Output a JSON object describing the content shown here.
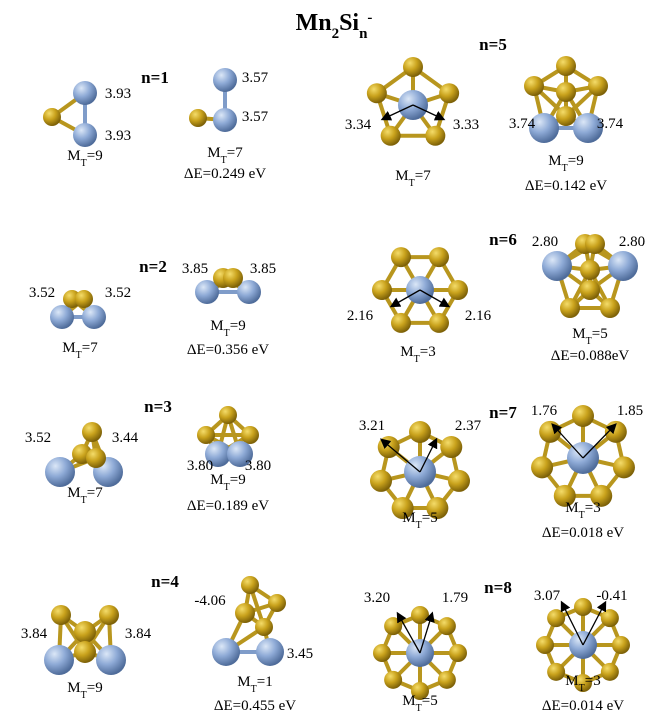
{
  "title": {
    "part1": "Mn",
    "sub1": "2",
    "part2": "Si",
    "sub2": "n",
    "sup": "-"
  },
  "groups": [
    {
      "label": "n=1",
      "isomers": [
        {
          "moments": [
            "3.93",
            "3.93"
          ],
          "mt": {
            "symbol": "M",
            "sub": "T",
            "value": "=9"
          }
        },
        {
          "moments": [
            "3.57",
            "3.57"
          ],
          "mt": {
            "symbol": "M",
            "sub": "T",
            "value": "=7"
          },
          "delta_e": "ΔE=0.249 eV"
        }
      ]
    },
    {
      "label": "n=2",
      "isomers": [
        {
          "moments": [
            "3.52",
            "3.52"
          ],
          "mt": {
            "symbol": "M",
            "sub": "T",
            "value": "=7"
          }
        },
        {
          "moments": [
            "3.85",
            "3.85"
          ],
          "mt": {
            "symbol": "M",
            "sub": "T",
            "value": "=9"
          },
          "delta_e": "ΔE=0.356 eV"
        }
      ]
    },
    {
      "label": "n=3",
      "isomers": [
        {
          "moments": [
            "3.52",
            "3.44"
          ],
          "mt": {
            "symbol": "M",
            "sub": "T",
            "value": "=7"
          }
        },
        {
          "moments": [
            "3.80",
            "3.80"
          ],
          "mt": {
            "symbol": "M",
            "sub": "T",
            "value": "=9"
          },
          "delta_e": "ΔE=0.189 eV"
        }
      ]
    },
    {
      "label": "n=4",
      "isomers": [
        {
          "moments": [
            "3.84",
            "3.84"
          ],
          "mt": {
            "symbol": "M",
            "sub": "T",
            "value": "=9"
          }
        },
        {
          "moments": [
            "-4.06",
            "3.45"
          ],
          "mt": {
            "symbol": "M",
            "sub": "T",
            "value": "=1"
          },
          "delta_e": "ΔE=0.455 eV"
        }
      ]
    },
    {
      "label": "n=5",
      "isomers": [
        {
          "moments": [
            "3.34",
            "3.33"
          ],
          "mt": {
            "symbol": "M",
            "sub": "T",
            "value": "=7"
          }
        },
        {
          "moments": [
            "3.74",
            "3.74"
          ],
          "mt": {
            "symbol": "M",
            "sub": "T",
            "value": "=9"
          },
          "delta_e": "ΔE=0.142 eV"
        }
      ]
    },
    {
      "label": "n=6",
      "isomers": [
        {
          "moments": [
            "2.16",
            "2.16"
          ],
          "mt": {
            "symbol": "M",
            "sub": "T",
            "value": "=3"
          }
        },
        {
          "moments": [
            "2.80",
            "2.80"
          ],
          "mt": {
            "symbol": "M",
            "sub": "T",
            "value": "=5"
          },
          "delta_e": "ΔE=0.088eV"
        }
      ]
    },
    {
      "label": "n=7",
      "isomers": [
        {
          "moments": [
            "3.21",
            "2.37"
          ],
          "mt": {
            "symbol": "M",
            "sub": "T",
            "value": "=5"
          }
        },
        {
          "moments": [
            "1.76",
            "1.85"
          ],
          "mt": {
            "symbol": "M",
            "sub": "T",
            "value": "=3"
          },
          "delta_e": "ΔE=0.018 eV"
        }
      ]
    },
    {
      "label": "n=8",
      "isomers": [
        {
          "moments": [
            "3.20",
            "1.79"
          ],
          "mt": {
            "symbol": "M",
            "sub": "T",
            "value": "=5"
          }
        },
        {
          "moments": [
            "3.07",
            "-0.41"
          ],
          "mt": {
            "symbol": "M",
            "sub": "T",
            "value": "=3"
          },
          "delta_e": "ΔE=0.014 eV"
        }
      ]
    }
  ]
}
